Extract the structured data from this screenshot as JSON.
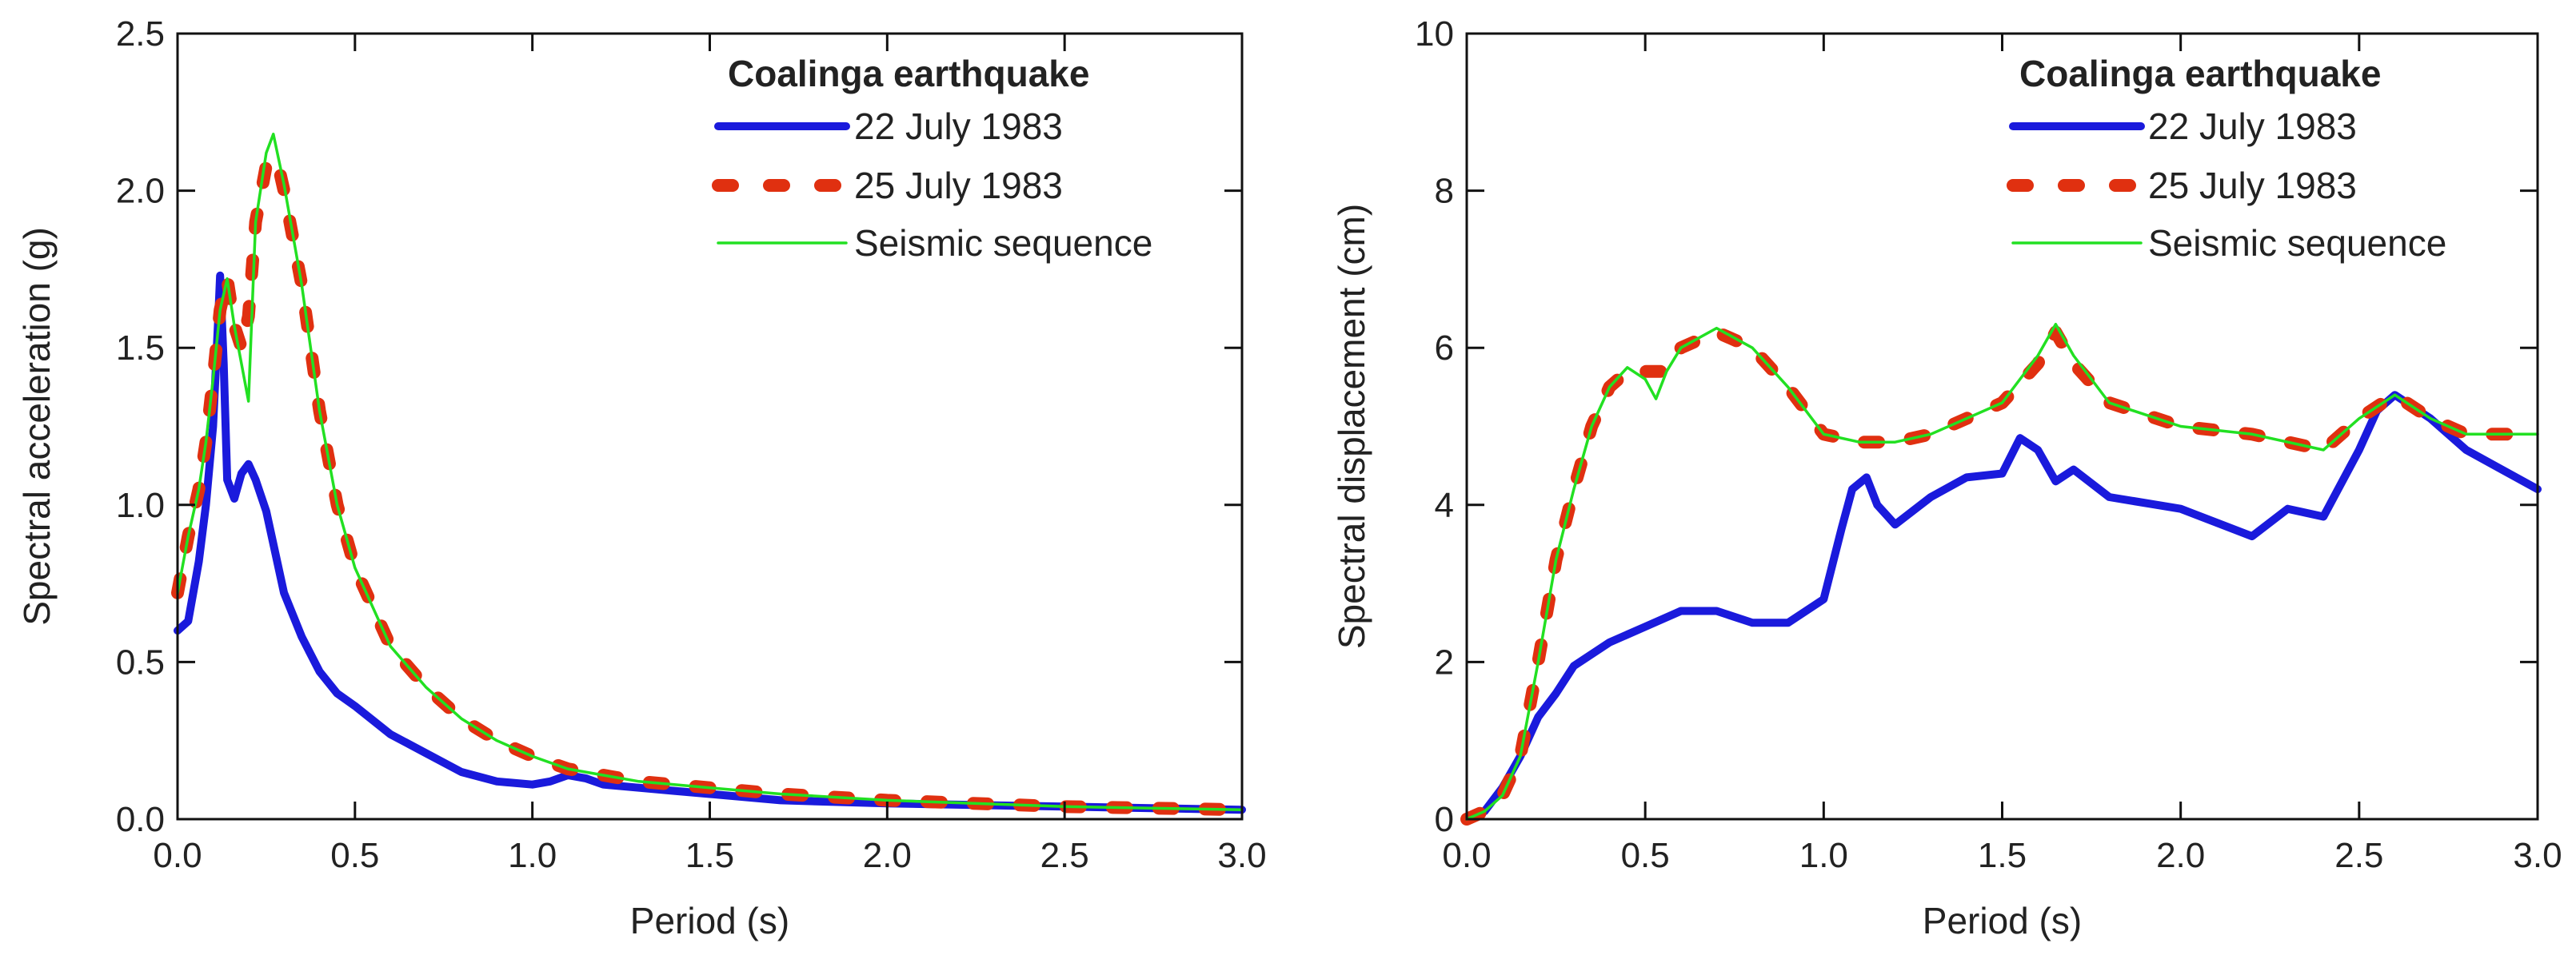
{
  "chart_data": [
    {
      "type": "line",
      "xlabel": "Period (s)",
      "ylabel": "Spectral acceleration (g)",
      "xlim": [
        0,
        3.0
      ],
      "ylim": [
        0,
        2.5
      ],
      "xticks": [
        "0.0",
        "0.5",
        "1.0",
        "1.5",
        "2.0",
        "2.5",
        "3.0"
      ],
      "yticks": [
        "0.0",
        "0.5",
        "1.0",
        "1.5",
        "2.0",
        "2.5"
      ],
      "grid": false,
      "legend": {
        "title": "Coalinga earthquake",
        "position": "top-right"
      },
      "series": [
        {
          "name": "22 July 1983",
          "color": "#1a1adc",
          "style": "solid-thick",
          "x": [
            0,
            0.03,
            0.06,
            0.08,
            0.1,
            0.115,
            0.12,
            0.13,
            0.14,
            0.16,
            0.18,
            0.2,
            0.22,
            0.25,
            0.3,
            0.35,
            0.4,
            0.45,
            0.5,
            0.6,
            0.7,
            0.8,
            0.9,
            1.0,
            1.05,
            1.1,
            1.15,
            1.2,
            1.3,
            1.4,
            1.5,
            1.7,
            2.0,
            2.5,
            3.0
          ],
          "y": [
            0.6,
            0.63,
            0.82,
            1.0,
            1.25,
            1.6,
            1.73,
            1.45,
            1.08,
            1.02,
            1.1,
            1.13,
            1.08,
            0.98,
            0.72,
            0.58,
            0.47,
            0.4,
            0.36,
            0.27,
            0.21,
            0.15,
            0.12,
            0.11,
            0.12,
            0.14,
            0.13,
            0.11,
            0.1,
            0.09,
            0.08,
            0.06,
            0.05,
            0.04,
            0.03
          ]
        },
        {
          "name": "25 July 1983",
          "color": "#e03010",
          "style": "dashed-thick",
          "x": [
            0,
            0.03,
            0.06,
            0.08,
            0.1,
            0.12,
            0.14,
            0.16,
            0.18,
            0.2,
            0.22,
            0.25,
            0.28,
            0.3,
            0.35,
            0.4,
            0.45,
            0.5,
            0.6,
            0.7,
            0.8,
            0.9,
            1.0,
            1.1,
            1.2,
            1.3,
            1.4,
            1.5,
            1.7,
            2.0,
            2.5,
            3.0
          ],
          "y": [
            0.72,
            0.9,
            1.05,
            1.2,
            1.4,
            1.62,
            1.72,
            1.57,
            1.5,
            1.6,
            1.9,
            2.08,
            2.1,
            2.0,
            1.7,
            1.3,
            1.0,
            0.8,
            0.55,
            0.42,
            0.32,
            0.25,
            0.2,
            0.16,
            0.14,
            0.12,
            0.11,
            0.1,
            0.08,
            0.06,
            0.04,
            0.03
          ]
        },
        {
          "name": "Seismic sequence",
          "color": "#22e022",
          "style": "solid-thin",
          "x": [
            0,
            0.03,
            0.06,
            0.08,
            0.1,
            0.12,
            0.14,
            0.16,
            0.18,
            0.2,
            0.22,
            0.25,
            0.27,
            0.3,
            0.35,
            0.4,
            0.45,
            0.5,
            0.6,
            0.7,
            0.8,
            0.9,
            1.0,
            1.1,
            1.2,
            1.3,
            1.4,
            1.5,
            1.7,
            2.0,
            2.5,
            3.0
          ],
          "y": [
            0.72,
            0.9,
            1.05,
            1.2,
            1.4,
            1.62,
            1.72,
            1.57,
            1.45,
            1.33,
            1.9,
            2.12,
            2.18,
            2.02,
            1.7,
            1.3,
            1.0,
            0.8,
            0.55,
            0.42,
            0.32,
            0.25,
            0.2,
            0.16,
            0.14,
            0.12,
            0.11,
            0.1,
            0.08,
            0.06,
            0.04,
            0.03
          ]
        }
      ]
    },
    {
      "type": "line",
      "xlabel": "Period (s)",
      "ylabel": "Spectral displacement (cm)",
      "xlim": [
        0,
        3.0
      ],
      "ylim": [
        0,
        10
      ],
      "xticks": [
        "0.0",
        "0.5",
        "1.0",
        "1.5",
        "2.0",
        "2.5",
        "3.0"
      ],
      "yticks": [
        "0",
        "2",
        "4",
        "6",
        "8",
        "10"
      ],
      "grid": false,
      "legend": {
        "title": "Coalinga earthquake",
        "position": "top-right"
      },
      "series": [
        {
          "name": "22 July 1983",
          "color": "#1a1adc",
          "style": "solid-thick",
          "x": [
            0,
            0.05,
            0.1,
            0.15,
            0.2,
            0.25,
            0.3,
            0.4,
            0.5,
            0.6,
            0.7,
            0.8,
            0.9,
            1.0,
            1.05,
            1.08,
            1.12,
            1.15,
            1.2,
            1.3,
            1.4,
            1.5,
            1.55,
            1.6,
            1.65,
            1.7,
            1.8,
            2.0,
            2.2,
            2.3,
            2.4,
            2.5,
            2.55,
            2.6,
            2.7,
            2.8,
            2.9,
            3.0
          ],
          "y": [
            0,
            0.1,
            0.4,
            0.8,
            1.3,
            1.6,
            1.95,
            2.25,
            2.45,
            2.65,
            2.65,
            2.5,
            2.5,
            2.8,
            3.7,
            4.2,
            4.35,
            4.0,
            3.75,
            4.1,
            4.35,
            4.4,
            4.85,
            4.7,
            4.3,
            4.45,
            4.1,
            3.95,
            3.6,
            3.95,
            3.85,
            4.7,
            5.2,
            5.4,
            5.1,
            4.7,
            4.45,
            4.2
          ]
        },
        {
          "name": "25 July 1983",
          "color": "#e03010",
          "style": "dashed-thick",
          "x": [
            0,
            0.05,
            0.1,
            0.15,
            0.2,
            0.25,
            0.3,
            0.35,
            0.4,
            0.45,
            0.5,
            0.55,
            0.6,
            0.7,
            0.8,
            0.9,
            1.0,
            1.1,
            1.2,
            1.3,
            1.4,
            1.5,
            1.6,
            1.65,
            1.7,
            1.8,
            2.0,
            2.2,
            2.4,
            2.5,
            2.6,
            2.7,
            2.8,
            2.9,
            3.0
          ],
          "y": [
            0,
            0.1,
            0.3,
            0.8,
            2.0,
            3.3,
            4.2,
            5.0,
            5.5,
            5.7,
            5.7,
            5.7,
            6.0,
            6.2,
            6.0,
            5.5,
            4.9,
            4.8,
            4.8,
            4.9,
            5.1,
            5.3,
            5.8,
            6.2,
            5.8,
            5.3,
            5.0,
            4.9,
            4.7,
            5.1,
            5.4,
            5.1,
            4.9,
            4.9,
            4.9
          ]
        },
        {
          "name": "Seismic sequence",
          "color": "#22e022",
          "style": "solid-thin",
          "x": [
            0,
            0.05,
            0.1,
            0.15,
            0.2,
            0.25,
            0.3,
            0.35,
            0.4,
            0.45,
            0.5,
            0.53,
            0.56,
            0.6,
            0.7,
            0.8,
            0.9,
            1.0,
            1.1,
            1.2,
            1.3,
            1.4,
            1.5,
            1.6,
            1.65,
            1.7,
            1.8,
            2.0,
            2.2,
            2.4,
            2.5,
            2.6,
            2.7,
            2.8,
            2.9,
            3.0
          ],
          "y": [
            0,
            0.1,
            0.3,
            0.8,
            2.0,
            3.3,
            4.2,
            5.0,
            5.5,
            5.75,
            5.6,
            5.35,
            5.7,
            6.0,
            6.25,
            6.0,
            5.5,
            4.9,
            4.8,
            4.8,
            4.9,
            5.1,
            5.3,
            5.9,
            6.3,
            5.9,
            5.3,
            5.0,
            4.9,
            4.7,
            5.1,
            5.4,
            5.1,
            4.9,
            4.9,
            4.9
          ]
        }
      ]
    }
  ]
}
